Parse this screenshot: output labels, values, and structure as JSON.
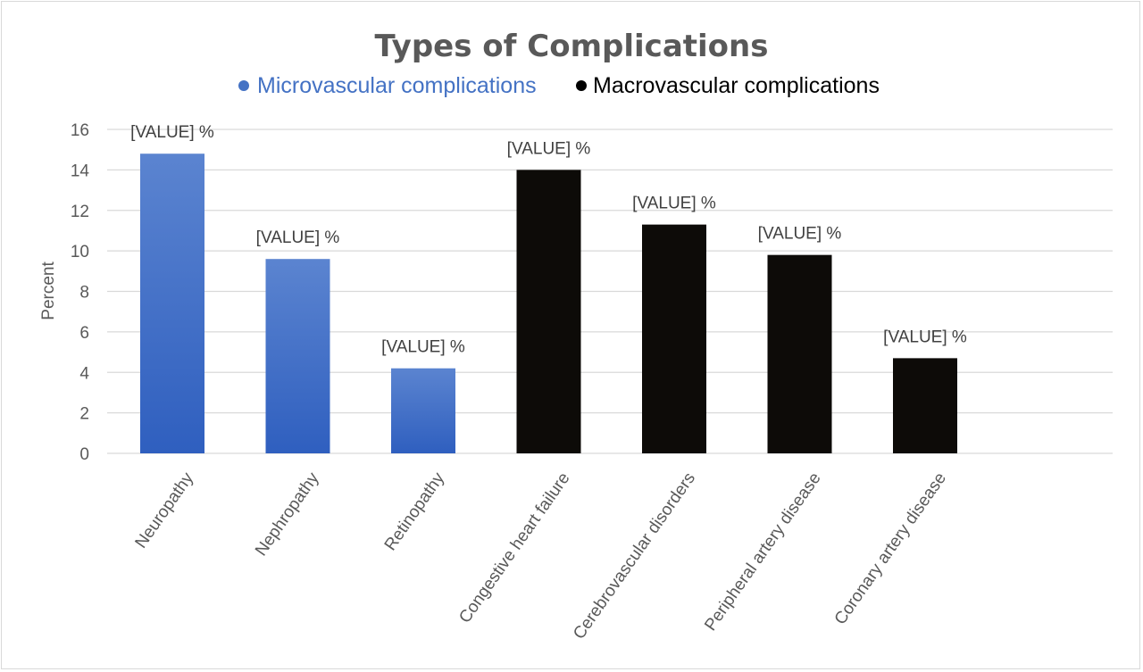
{
  "chart_data": {
    "type": "bar",
    "title": "Types of Complications",
    "ylabel": "Percent",
    "xlabel": "",
    "ylim": [
      0,
      16
    ],
    "yticks": [
      0,
      2,
      4,
      6,
      8,
      10,
      12,
      14,
      16
    ],
    "grid": true,
    "legend_position": "top",
    "categories": [
      "Neuropathy",
      "Nephropathy",
      "Retinopathy",
      "Congestive heart failure",
      "Cerebrovascular disorders",
      "Peripheral artery disease",
      "Coronary artery disease"
    ],
    "values": [
      14.8,
      9.6,
      4.2,
      14.0,
      11.3,
      9.8,
      4.7
    ],
    "data_labels": [
      "[VALUE] %",
      "[VALUE] %",
      "[VALUE] %",
      "[VALUE] %",
      "[VALUE] %",
      "[VALUE] %",
      "[VALUE] %"
    ],
    "groups": [
      "micro",
      "micro",
      "micro",
      "macro",
      "macro",
      "macro",
      "macro"
    ],
    "legend": [
      {
        "key": "micro",
        "name": "Microvascular complications",
        "color": "#4472c4"
      },
      {
        "key": "macro",
        "name": "Macrovascular complications",
        "color": "#000000"
      }
    ],
    "colors": {
      "micro_top": "#5b84d0",
      "micro_bottom": "#2f5fbf",
      "macro": "#0d0b08",
      "grid": "#d9d9d9",
      "axis_text": "#595959",
      "title": "#595959"
    }
  }
}
